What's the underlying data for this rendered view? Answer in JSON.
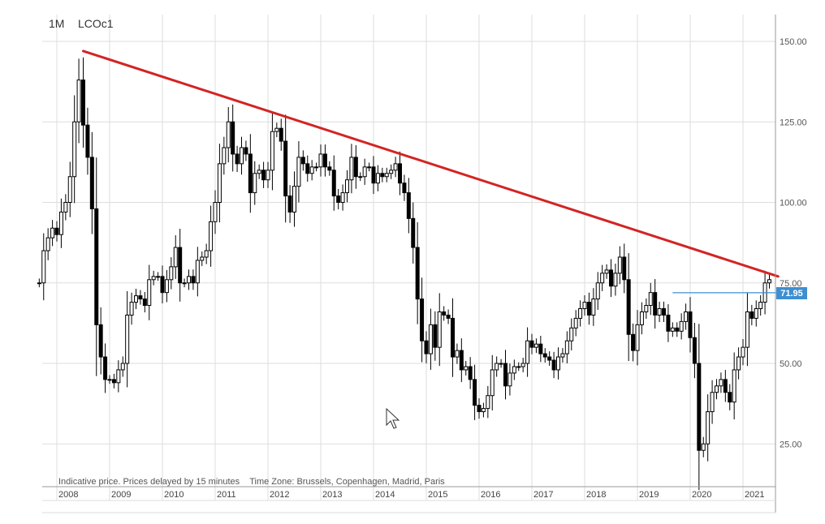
{
  "header": {
    "interval": "1M",
    "symbol": "LCOc1"
  },
  "footer_note": "Indicative price. Prices delayed by 15 minutes    Time Zone: Brussels, Copenhagen, Madrid, Paris",
  "last_price_label": "71.95",
  "colors": {
    "candle": "#000000",
    "trendline": "#d32424",
    "level_line": "#3d8fd1",
    "grid": "#dddddd",
    "axis": "#999999",
    "price_tag": "#3d8fd1"
  },
  "chart_data": {
    "type": "candlestick",
    "interval": "1M",
    "symbol": "LCOc1",
    "x_ticks": [
      "2008",
      "2009",
      "2010",
      "2011",
      "2012",
      "2013",
      "2014",
      "2015",
      "2016",
      "2017",
      "2018",
      "2019",
      "2020",
      "2021"
    ],
    "y_ticks": [
      "25.00",
      "50.00",
      "75.00",
      "100.00",
      "125.00",
      "150.00"
    ],
    "ylim": [
      12,
      162
    ],
    "xlim": [
      "2007-09",
      "2021-09"
    ],
    "grid": true,
    "trendline": {
      "start": {
        "date": "2008-07",
        "value": 147
      },
      "end": {
        "date": "2021-09",
        "value": 77
      },
      "color": "#d32424"
    },
    "level_line": {
      "start_date": "2019-09",
      "value": 71.95,
      "color": "#3d8fd1"
    },
    "last_price": 71.95,
    "closes": [
      [
        "2007-09",
        75
      ],
      [
        "2007-10",
        85
      ],
      [
        "2007-11",
        89
      ],
      [
        "2007-12",
        92
      ],
      [
        "2008-01",
        90
      ],
      [
        "2008-02",
        97
      ],
      [
        "2008-03",
        100
      ],
      [
        "2008-04",
        108
      ],
      [
        "2008-05",
        125
      ],
      [
        "2008-06",
        138
      ],
      [
        "2008-07",
        124
      ],
      [
        "2008-08",
        114
      ],
      [
        "2008-09",
        98
      ],
      [
        "2008-10",
        62
      ],
      [
        "2008-11",
        52
      ],
      [
        "2008-12",
        45
      ],
      [
        "2009-01",
        45
      ],
      [
        "2009-02",
        44
      ],
      [
        "2009-03",
        48
      ],
      [
        "2009-04",
        50
      ],
      [
        "2009-05",
        65
      ],
      [
        "2009-06",
        69
      ],
      [
        "2009-07",
        71
      ],
      [
        "2009-08",
        70
      ],
      [
        "2009-09",
        68
      ],
      [
        "2009-10",
        76
      ],
      [
        "2009-11",
        77
      ],
      [
        "2009-12",
        77
      ],
      [
        "2010-01",
        72
      ],
      [
        "2010-02",
        76
      ],
      [
        "2010-03",
        80
      ],
      [
        "2010-04",
        86
      ],
      [
        "2010-05",
        75
      ],
      [
        "2010-06",
        75
      ],
      [
        "2010-07",
        77
      ],
      [
        "2010-08",
        75
      ],
      [
        "2010-09",
        82
      ],
      [
        "2010-10",
        83
      ],
      [
        "2010-11",
        85
      ],
      [
        "2010-12",
        94
      ],
      [
        "2011-01",
        100
      ],
      [
        "2011-02",
        112
      ],
      [
        "2011-03",
        117
      ],
      [
        "2011-04",
        125
      ],
      [
        "2011-05",
        115
      ],
      [
        "2011-06",
        112
      ],
      [
        "2011-07",
        117
      ],
      [
        "2011-08",
        115
      ],
      [
        "2011-09",
        103
      ],
      [
        "2011-10",
        109
      ],
      [
        "2011-11",
        110
      ],
      [
        "2011-12",
        107
      ],
      [
        "2012-01",
        110
      ],
      [
        "2012-02",
        122
      ],
      [
        "2012-03",
        123
      ],
      [
        "2012-04",
        119
      ],
      [
        "2012-05",
        102
      ],
      [
        "2012-06",
        97
      ],
      [
        "2012-07",
        105
      ],
      [
        "2012-08",
        114
      ],
      [
        "2012-09",
        112
      ],
      [
        "2012-10",
        109
      ],
      [
        "2012-11",
        111
      ],
      [
        "2012-12",
        111
      ],
      [
        "2013-01",
        115
      ],
      [
        "2013-02",
        111
      ],
      [
        "2013-03",
        110
      ],
      [
        "2013-04",
        102
      ],
      [
        "2013-05",
        100
      ],
      [
        "2013-06",
        103
      ],
      [
        "2013-07",
        107
      ],
      [
        "2013-08",
        114
      ],
      [
        "2013-09",
        108
      ],
      [
        "2013-10",
        108
      ],
      [
        "2013-11",
        111
      ],
      [
        "2013-12",
        111
      ],
      [
        "2014-01",
        106
      ],
      [
        "2014-02",
        109
      ],
      [
        "2014-03",
        108
      ],
      [
        "2014-04",
        109
      ],
      [
        "2014-05",
        110
      ],
      [
        "2014-06",
        112
      ],
      [
        "2014-07",
        106
      ],
      [
        "2014-08",
        103
      ],
      [
        "2014-09",
        95
      ],
      [
        "2014-10",
        86
      ],
      [
        "2014-11",
        70
      ],
      [
        "2014-12",
        57
      ],
      [
        "2015-01",
        53
      ],
      [
        "2015-02",
        62
      ],
      [
        "2015-03",
        55
      ],
      [
        "2015-04",
        66
      ],
      [
        "2015-05",
        65
      ],
      [
        "2015-06",
        64
      ],
      [
        "2015-07",
        52
      ],
      [
        "2015-08",
        54
      ],
      [
        "2015-09",
        48
      ],
      [
        "2015-10",
        49
      ],
      [
        "2015-11",
        45
      ],
      [
        "2015-12",
        37
      ],
      [
        "2016-01",
        35
      ],
      [
        "2016-02",
        36
      ],
      [
        "2016-03",
        40
      ],
      [
        "2016-04",
        48
      ],
      [
        "2016-05",
        50
      ],
      [
        "2016-06",
        50
      ],
      [
        "2016-07",
        43
      ],
      [
        "2016-08",
        47
      ],
      [
        "2016-09",
        49
      ],
      [
        "2016-10",
        49
      ],
      [
        "2016-11",
        50
      ],
      [
        "2016-12",
        57
      ],
      [
        "2017-01",
        55
      ],
      [
        "2017-02",
        56
      ],
      [
        "2017-03",
        53
      ],
      [
        "2017-04",
        52
      ],
      [
        "2017-05",
        51
      ],
      [
        "2017-06",
        48
      ],
      [
        "2017-07",
        52
      ],
      [
        "2017-08",
        53
      ],
      [
        "2017-09",
        57
      ],
      [
        "2017-10",
        61
      ],
      [
        "2017-11",
        64
      ],
      [
        "2017-12",
        67
      ],
      [
        "2018-01",
        69
      ],
      [
        "2018-02",
        65
      ],
      [
        "2018-03",
        70
      ],
      [
        "2018-04",
        75
      ],
      [
        "2018-05",
        78
      ],
      [
        "2018-06",
        79
      ],
      [
        "2018-07",
        74
      ],
      [
        "2018-08",
        78
      ],
      [
        "2018-09",
        83
      ],
      [
        "2018-10",
        76
      ],
      [
        "2018-11",
        59
      ],
      [
        "2018-12",
        54
      ],
      [
        "2019-01",
        62
      ],
      [
        "2019-02",
        66
      ],
      [
        "2019-03",
        68
      ],
      [
        "2019-04",
        72
      ],
      [
        "2019-05",
        65
      ],
      [
        "2019-06",
        67
      ],
      [
        "2019-07",
        65
      ],
      [
        "2019-08",
        60
      ],
      [
        "2019-09",
        61
      ],
      [
        "2019-10",
        60
      ],
      [
        "2019-11",
        63
      ],
      [
        "2019-12",
        66
      ],
      [
        "2020-01",
        58
      ],
      [
        "2020-02",
        50
      ],
      [
        "2020-03",
        23
      ],
      [
        "2020-04",
        25
      ],
      [
        "2020-05",
        35
      ],
      [
        "2020-06",
        41
      ],
      [
        "2020-07",
        43
      ],
      [
        "2020-08",
        45
      ],
      [
        "2020-09",
        41
      ],
      [
        "2020-10",
        38
      ],
      [
        "2020-11",
        48
      ],
      [
        "2020-12",
        52
      ],
      [
        "2021-01",
        55
      ],
      [
        "2021-02",
        66
      ],
      [
        "2021-03",
        64
      ],
      [
        "2021-04",
        67
      ],
      [
        "2021-05",
        69
      ],
      [
        "2021-06",
        75
      ],
      [
        "2021-07",
        76
      ]
    ]
  }
}
